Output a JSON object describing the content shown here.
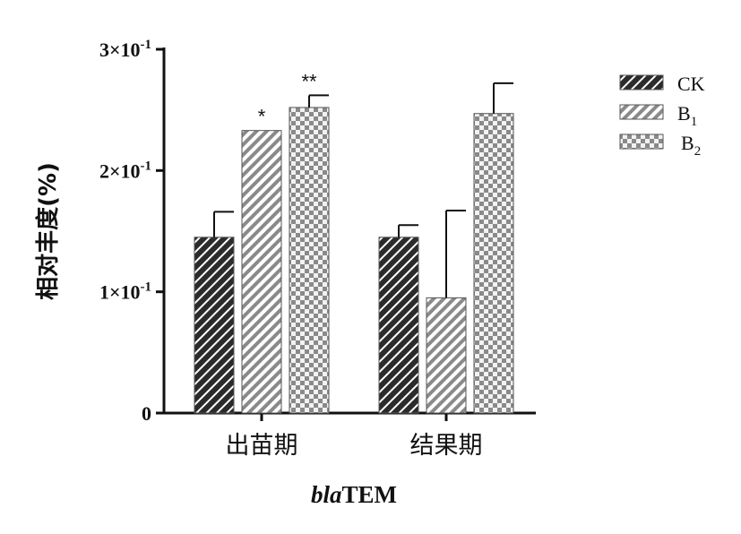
{
  "chart_data": {
    "type": "bar",
    "title": "",
    "xlabel": "TEM",
    "xlabel_italic_prefix": "bla",
    "ylabel": "相对丰度(%)",
    "ylim": [
      0,
      0.3
    ],
    "yticks": [
      {
        "value": 0,
        "label": "0"
      },
      {
        "value": 0.1,
        "label": "1×10-1"
      },
      {
        "value": 0.2,
        "label": "2×10-1"
      },
      {
        "value": 0.3,
        "label": "3×10-1"
      }
    ],
    "categories": [
      "出苗期",
      "结果期"
    ],
    "series": [
      {
        "name": "CK",
        "values": [
          0.145,
          0.145
        ],
        "errors": [
          0.021,
          0.01
        ],
        "significance": [
          "",
          ""
        ],
        "color": "#2b2b2b",
        "pattern": "dark-diagonal"
      },
      {
        "name": "B1",
        "values": [
          0.233,
          0.095
        ],
        "errors": [
          0.0,
          0.072
        ],
        "significance": [
          "*",
          ""
        ],
        "color": "#8a8a8a",
        "pattern": "light-diagonal"
      },
      {
        "name": "B2",
        "values": [
          0.252,
          0.247
        ],
        "errors": [
          0.01,
          0.025
        ],
        "significance": [
          "**",
          ""
        ],
        "color": "#8a8a8a",
        "pattern": "checker"
      }
    ],
    "legend_position": "right",
    "grid": false
  }
}
